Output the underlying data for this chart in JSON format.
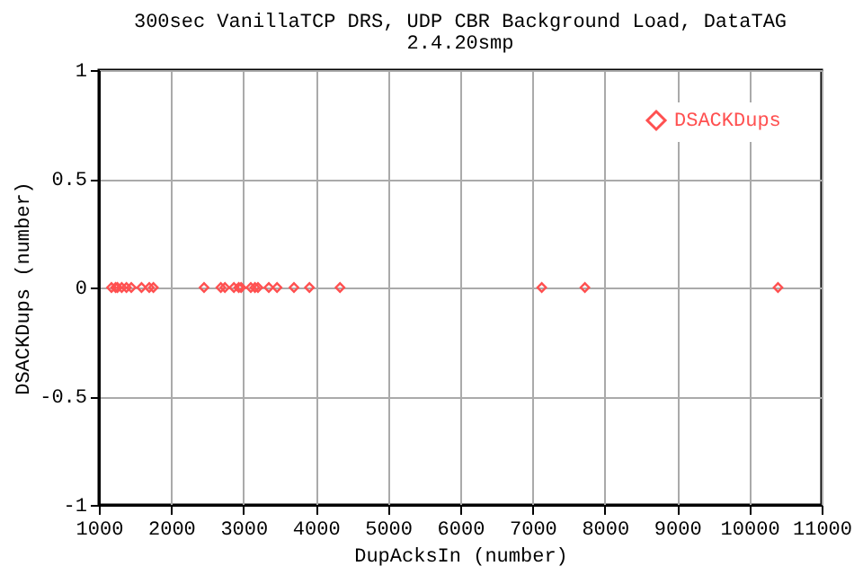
{
  "chart_data": {
    "type": "scatter",
    "title": "300sec VanillaTCP DRS, UDP CBR Background Load, DataTAG",
    "subtitle": "2.4.20smp",
    "xlabel": "DupAcksIn (number)",
    "ylabel": "DSACKDups (number)",
    "x": [
      1174,
      1231,
      1256,
      1316,
      1381,
      1448,
      1590,
      1697,
      1754,
      2455,
      2687,
      2744,
      2868,
      2935,
      2968,
      3102,
      3159,
      3201,
      3351,
      3465,
      3699,
      3913,
      4336,
      7127,
      7724,
      10396
    ],
    "series": [
      {
        "name": "DSACKDups",
        "color": "#ff5050",
        "values": [
          0,
          0,
          0,
          0,
          0,
          0,
          0,
          0,
          0,
          0,
          0,
          0,
          0,
          0,
          0,
          0,
          0,
          0,
          0,
          0,
          0,
          0,
          0,
          0,
          0,
          0
        ]
      }
    ],
    "xlim": [
      1000,
      11000
    ],
    "xticks": [
      1000,
      2000,
      3000,
      4000,
      5000,
      6000,
      7000,
      8000,
      9000,
      10000,
      11000
    ],
    "ylim": [
      -1,
      1
    ],
    "yticks": [
      -1,
      -0.5,
      0,
      0.5,
      1
    ],
    "grid": true,
    "legend": "top right",
    "marker": "diamond"
  }
}
